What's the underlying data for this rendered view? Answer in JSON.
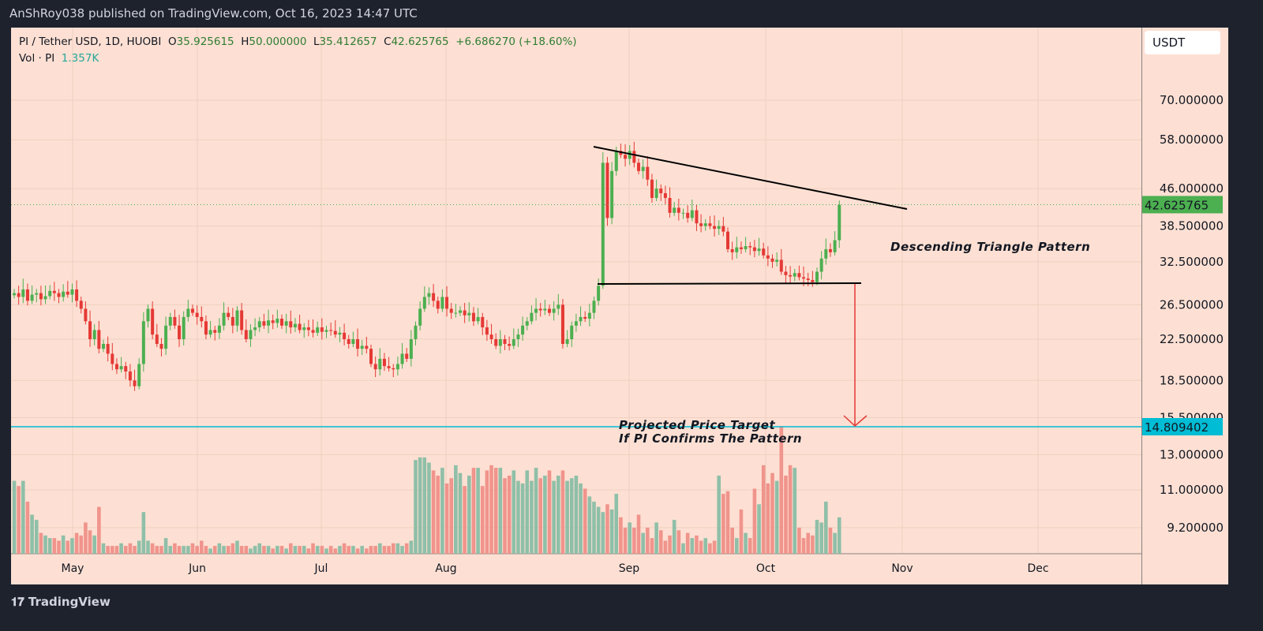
{
  "header": {
    "published": "AnShRoy038 published on TradingView.com, Oct 16, 2023 14:47 UTC"
  },
  "legend": {
    "symbol": "PI / Tether USD, 1D, HUOBI",
    "open_label": "O",
    "open": "35.925615",
    "high_label": "H",
    "high": "50.000000",
    "low_label": "L",
    "low": "35.412657",
    "close_label": "C",
    "close": "42.625765",
    "change": "+6.686270 (+18.60%)",
    "vol_label": "Vol · PI",
    "vol": "1.357K"
  },
  "currency_button": "USDT",
  "brand": "TradingView",
  "colors": {
    "up": "#26a69a",
    "down": "#ef5350",
    "candle_up": "#4caf50",
    "candle_down": "#e53935",
    "price_tag": "#4caf50",
    "target_line": "#00bcd4",
    "arrow": "#e53935",
    "background": "#fde0d3"
  },
  "chart_data": {
    "type": "candlestick",
    "scale": "log",
    "y_ticks": [
      "70.000000",
      "58.000000",
      "46.000000",
      "38.500000",
      "32.500000",
      "26.500000",
      "22.500000",
      "18.500000",
      "15.500000",
      "13.000000",
      "11.000000",
      "9.200000"
    ],
    "x_ticks": [
      "May",
      "Jun",
      "Jul",
      "Aug",
      "Sep",
      "Oct",
      "Nov",
      "Dec"
    ],
    "last_price": "42.625765",
    "target_price": "14.809402",
    "grid": true,
    "closes": [
      28,
      27.5,
      28.5,
      27,
      27.8,
      28,
      27.2,
      27.6,
      28.3,
      28,
      27.5,
      28.2,
      27.8,
      28.5,
      27,
      26,
      24.5,
      22.5,
      23.5,
      21.5,
      22,
      21,
      20,
      19.5,
      19.8,
      19.3,
      18.5,
      18,
      20,
      24.5,
      26,
      23,
      22,
      21.5,
      24,
      25,
      24,
      22.5,
      25,
      26,
      25.5,
      25,
      24.5,
      23,
      23.5,
      23.2,
      24,
      25.5,
      25,
      24,
      25.8,
      23.5,
      22.5,
      23.5,
      23.8,
      24.5,
      24,
      24.6,
      24.3,
      24.8,
      24,
      24.5,
      23.8,
      24.2,
      23.5,
      23.8,
      23.5,
      23.2,
      23.8,
      23.3,
      23.5,
      23.4,
      23,
      23.2,
      22.5,
      22,
      22.5,
      21.5,
      21.8,
      21.5,
      20,
      19.5,
      20.5,
      19.8,
      19.6,
      19.5,
      20,
      21,
      20.5,
      22.5,
      24,
      26,
      27.5,
      28,
      27,
      26,
      27.5,
      26,
      25.5,
      25.5,
      25.8,
      25.2,
      25.5,
      24.5,
      25,
      23.8,
      23,
      22.5,
      21.8,
      22.5,
      22,
      21.8,
      22.5,
      23,
      24,
      24.5,
      25.5,
      26,
      25.8,
      26,
      25.5,
      26,
      26.5,
      22,
      22.5,
      24,
      24.5,
      25,
      24.8,
      25.5,
      27,
      29,
      52,
      40,
      50,
      55,
      54,
      53,
      55,
      52,
      50,
      51,
      48,
      44,
      46,
      45,
      44,
      41,
      42,
      41,
      41,
      40,
      41.5,
      39,
      38.5,
      39,
      38.5,
      38,
      38.5,
      37.5,
      34.5,
      34,
      34.8,
      34.5,
      35,
      34.8,
      34.2,
      34.6,
      33.5,
      33,
      32.5,
      32.8,
      31,
      30.5,
      30.3,
      30.8,
      30.2,
      30,
      29.8,
      29.5,
      31,
      33,
      34.5,
      34,
      36,
      42.6
    ],
    "volumes_k": [
      2.8,
      2.6,
      2.8,
      2,
      1.5,
      1.3,
      0.8,
      0.7,
      0.6,
      0.6,
      0.5,
      0.7,
      0.5,
      0.6,
      0.8,
      0.7,
      1.2,
      0.9,
      0.7,
      1.8,
      0.4,
      0.3,
      0.3,
      0.3,
      0.4,
      0.3,
      0.4,
      0.3,
      0.5,
      1.6,
      0.5,
      0.4,
      0.3,
      0.3,
      0.6,
      0.3,
      0.4,
      0.3,
      0.3,
      0.3,
      0.4,
      0.3,
      0.5,
      0.3,
      0.2,
      0.3,
      0.4,
      0.3,
      0.3,
      0.4,
      0.5,
      0.3,
      0.3,
      0.2,
      0.3,
      0.4,
      0.3,
      0.3,
      0.2,
      0.3,
      0.3,
      0.2,
      0.4,
      0.3,
      0.3,
      0.3,
      0.2,
      0.4,
      0.3,
      0.3,
      0.2,
      0.3,
      0.2,
      0.3,
      0.4,
      0.3,
      0.3,
      0.2,
      0.3,
      0.2,
      0.3,
      0.3,
      0.4,
      0.3,
      0.3,
      0.4,
      0.4,
      0.3,
      0.4,
      0.5,
      3.6,
      3.7,
      3.7,
      3.5,
      3.2,
      3.0,
      3.3,
      2.7,
      2.9,
      3.4,
      3.1,
      2.6,
      3.0,
      3.3,
      3.3,
      2.6,
      3.2,
      3.4,
      3.3,
      3.3,
      2.9,
      3.0,
      3.2,
      2.8,
      2.7,
      3.2,
      2.8,
      3.3,
      2.9,
      3.0,
      3.2,
      2.8,
      3.0,
      3.2,
      2.8,
      2.9,
      3.0,
      2.7,
      2.5,
      2.2,
      2.0,
      1.8,
      1.6,
      1.9,
      1.7,
      2.3,
      1.4,
      1.0,
      1.2,
      1.0,
      1.5,
      0.8,
      1.0,
      0.6,
      1.2,
      0.9,
      0.5,
      0.7,
      1.3,
      0.9,
      0.4,
      0.8,
      0.6,
      0.7,
      0.5,
      0.6,
      0.4,
      0.5,
      3.0,
      2.3,
      2.4,
      1.0,
      0.6,
      1.7,
      0.8,
      0.6,
      2.5,
      1.9,
      3.4,
      2.7,
      3.1,
      2.8,
      4.9,
      3.0,
      3.4,
      3.3,
      1.0,
      0.6,
      0.8,
      0.7,
      1.3,
      1.2,
      2.0,
      1.0,
      0.8,
      1.4
    ],
    "annotations": {
      "pattern": "Descending Triangle Pattern",
      "target_line1": "Projected Price Target",
      "target_line2": "If PI Confirms The Pattern"
    }
  }
}
